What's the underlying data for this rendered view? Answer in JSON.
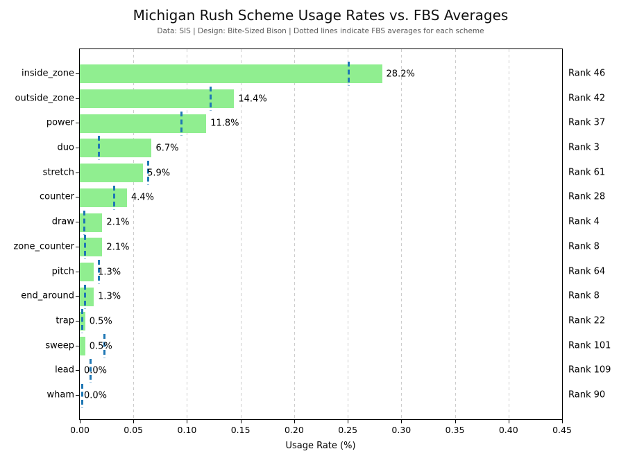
{
  "header": {
    "title": "Michigan Rush Scheme Usage Rates vs. FBS Averages",
    "subtitle": "Data: SIS | Design: Bite-Sized Bison | Dotted lines indicate FBS averages for each scheme"
  },
  "chart_data": {
    "type": "bar",
    "orientation": "horizontal",
    "title": "Michigan Rush Scheme Usage Rates vs. FBS Averages",
    "subtitle": "Data: SIS | Design: Bite-Sized Bison | Dotted lines indicate FBS averages for each scheme",
    "xlabel": "Usage Rate (%)",
    "ylabel": "",
    "xlim": [
      0,
      0.45
    ],
    "xtick_labels": [
      "0.00",
      "0.05",
      "0.10",
      "0.15",
      "0.20",
      "0.25",
      "0.30",
      "0.35",
      "0.40",
      "0.45"
    ],
    "xtick_values": [
      0.0,
      0.05,
      0.1,
      0.15,
      0.2,
      0.25,
      0.3,
      0.35,
      0.4,
      0.45
    ],
    "grid": "vertical dashed gridlines at each x tick",
    "legend": "none",
    "categories": [
      "inside_zone",
      "outside_zone",
      "power",
      "duo",
      "stretch",
      "counter",
      "draw",
      "zone_counter",
      "pitch",
      "end_around",
      "trap",
      "sweep",
      "lead",
      "wham"
    ],
    "series": [
      {
        "name": "Michigan usage rate (green bars)",
        "values": [
          0.282,
          0.144,
          0.118,
          0.067,
          0.059,
          0.044,
          0.021,
          0.021,
          0.013,
          0.013,
          0.005,
          0.005,
          0.0,
          0.0
        ]
      },
      {
        "name": "FBS average (blue dashed vertical line)",
        "values": [
          0.251,
          0.122,
          0.095,
          0.018,
          0.064,
          0.032,
          0.004,
          0.005,
          0.018,
          0.005,
          0.002,
          0.023,
          0.01,
          0.002
        ]
      }
    ],
    "bar_value_labels": [
      "28.2%",
      "14.4%",
      "11.8%",
      "6.7%",
      "5.9%",
      "4.4%",
      "2.1%",
      "2.1%",
      "1.3%",
      "1.3%",
      "0.5%",
      "0.5%",
      "0.0%",
      "0.0%"
    ],
    "rank_labels": [
      "Rank 46",
      "Rank 42",
      "Rank 37",
      "Rank 3",
      "Rank 61",
      "Rank 28",
      "Rank 4",
      "Rank 8",
      "Rank 64",
      "Rank 8",
      "Rank 22",
      "Rank 101",
      "Rank 109",
      "Rank 90"
    ],
    "colors": {
      "bar": "#90ee90",
      "fbs_average_line": "#1f77b4",
      "gridline": "#cccccc",
      "subtitle_text": "#595959",
      "axis_text": "#000000"
    }
  }
}
